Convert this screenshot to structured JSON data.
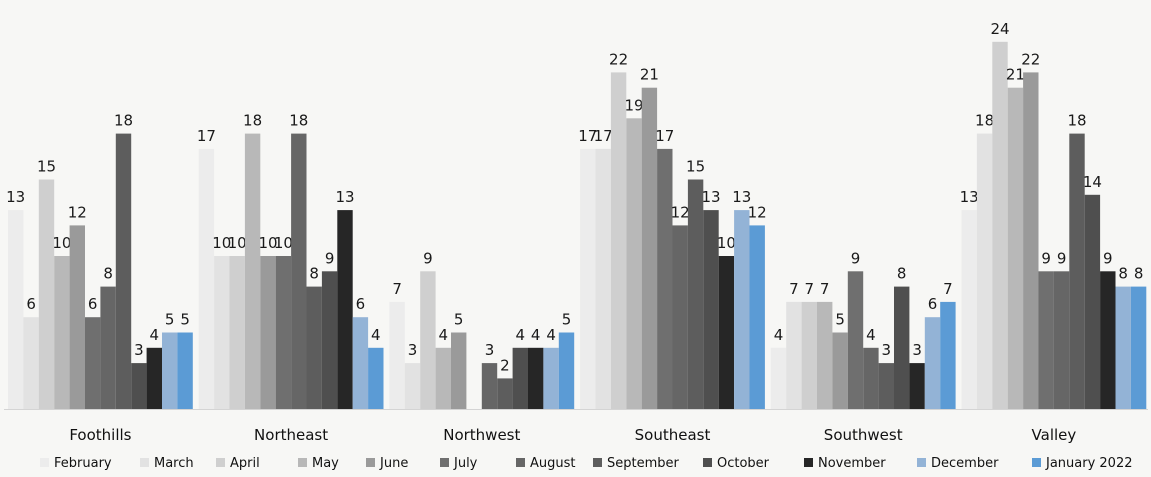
{
  "chart_data": {
    "type": "bar",
    "title": "",
    "xlabel": "",
    "ylabel": "",
    "ylim": [
      0,
      24
    ],
    "grid": false,
    "legend_position": "bottom",
    "categories": [
      "Foothills",
      "Northeast",
      "Northwest",
      "Southeast",
      "Southwest",
      "Valley"
    ],
    "series": [
      {
        "name": "February",
        "color": "#ececec",
        "values": [
          13,
          17,
          7,
          17,
          4,
          13
        ]
      },
      {
        "name": "March",
        "color": "#e2e2e2",
        "values": [
          6,
          10,
          3,
          17,
          7,
          18
        ]
      },
      {
        "name": "April",
        "color": "#cfcfcf",
        "values": [
          15,
          10,
          9,
          22,
          7,
          24
        ]
      },
      {
        "name": "May",
        "color": "#b8b8b8",
        "values": [
          10,
          18,
          4,
          19,
          7,
          21
        ]
      },
      {
        "name": "June",
        "color": "#9a9a9a",
        "values": [
          12,
          10,
          5,
          21,
          5,
          22
        ]
      },
      {
        "name": "July",
        "color": "#6f6f6f",
        "values": [
          6,
          10,
          null,
          17,
          9,
          9
        ]
      },
      {
        "name": "August",
        "color": "#666666",
        "values": [
          8,
          18,
          3,
          12,
          4,
          9
        ]
      },
      {
        "name": "September",
        "color": "#5d5d5d",
        "values": [
          18,
          8,
          2,
          15,
          3,
          18
        ]
      },
      {
        "name": "October",
        "color": "#4f4f4f",
        "values": [
          3,
          9,
          4,
          13,
          8,
          14
        ]
      },
      {
        "name": "November",
        "color": "#262626",
        "values": [
          4,
          13,
          4,
          10,
          3,
          9
        ]
      },
      {
        "name": "December",
        "color": "#93b3d6",
        "values": [
          5,
          6,
          4,
          13,
          6,
          8
        ]
      },
      {
        "name": "January 2022",
        "color": "#5b9bd5",
        "values": [
          5,
          4,
          5,
          12,
          7,
          8
        ]
      }
    ]
  }
}
